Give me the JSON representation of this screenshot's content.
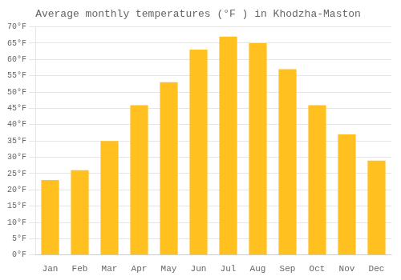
{
  "chart_data": {
    "type": "bar",
    "title": "Average monthly temperatures (°F ) in Khodzha-Maston",
    "categories": [
      "Jan",
      "Feb",
      "Mar",
      "Apr",
      "May",
      "Jun",
      "Jul",
      "Aug",
      "Sep",
      "Oct",
      "Nov",
      "Dec"
    ],
    "values": [
      23,
      26,
      35,
      46,
      53,
      63,
      67,
      65,
      57,
      46,
      37,
      29
    ],
    "color": "#FFC020",
    "ylim": [
      0,
      70
    ],
    "yticks": [
      {
        "value": 0,
        "label": "0°F"
      },
      {
        "value": 5,
        "label": "5°F"
      },
      {
        "value": 10,
        "label": "10°F"
      },
      {
        "value": 15,
        "label": "15°F"
      },
      {
        "value": 20,
        "label": "20°F"
      },
      {
        "value": 25,
        "label": "25°F"
      },
      {
        "value": 30,
        "label": "30°F"
      },
      {
        "value": 35,
        "label": "35°F"
      },
      {
        "value": 40,
        "label": "40°F"
      },
      {
        "value": 45,
        "label": "45°F"
      },
      {
        "value": 50,
        "label": "50°F"
      },
      {
        "value": 55,
        "label": "55°F"
      },
      {
        "value": 60,
        "label": "60°F"
      },
      {
        "value": 65,
        "label": "65°F"
      },
      {
        "value": 70,
        "label": "70°F"
      }
    ],
    "grid": true
  }
}
